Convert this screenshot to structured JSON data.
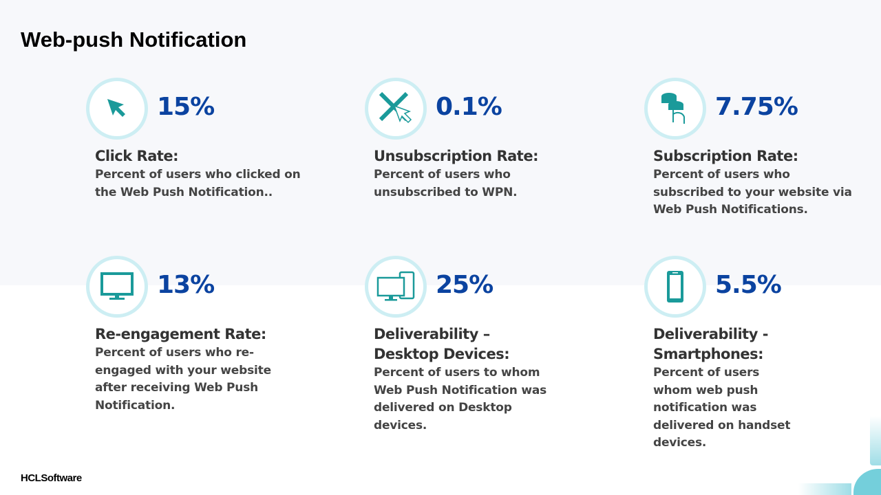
{
  "title": "Web-push Notification",
  "logo": "HCLSoftware",
  "metrics": [
    {
      "icon": "cursor-icon",
      "value": "15%",
      "label": "Click Rate:",
      "desc": "Percent of users who clicked on the Web Push Notification.."
    },
    {
      "icon": "unsubscribe-cursor-icon",
      "value": "0.1%",
      "label": "Unsubscription Rate:",
      "desc": "Percent of users who unsubscribed to WPN."
    },
    {
      "icon": "coins-hand-icon",
      "value": "7.75%",
      "label": "Subscription Rate:",
      "desc": "Percent of users who subscribed to your website via Web Push Notifications."
    },
    {
      "icon": "monitor-icon",
      "value": "13%",
      "label": "Re-engagement Rate:",
      "desc": "Percent of users who re-engaged with your website after receiving Web Push Notification."
    },
    {
      "icon": "desktop-devices-icon",
      "value": "25%",
      "label": "Deliverability – Desktop Devices:",
      "desc": "Percent of users to whom Web Push Notification was delivered on Desktop devices."
    },
    {
      "icon": "smartphone-icon",
      "value": "5.5%",
      "label": "Deliverability - Smartphones:",
      "desc": "Percent of users whom web push notification was delivered on handset devices."
    }
  ],
  "colors": {
    "accent": "#0b43a0",
    "icon": "#1a9a9a",
    "ring": "#cdeef3"
  }
}
